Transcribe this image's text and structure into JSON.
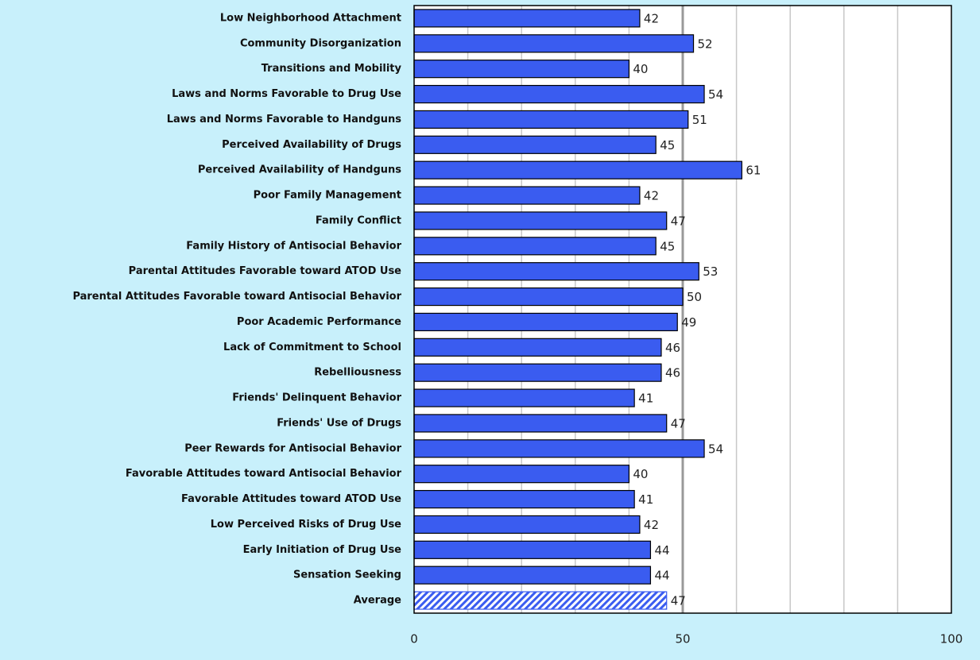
{
  "chart_data": {
    "type": "hbar",
    "categories": [
      "Low Neighborhood Attachment",
      "Community Disorganization",
      "Transitions and Mobility",
      "Laws and Norms Favorable to Drug Use",
      "Laws and Norms Favorable to Handguns",
      "Perceived Availability of Drugs",
      "Perceived Availability of Handguns",
      "Poor Family Management",
      "Family Conflict",
      "Family History of Antisocial Behavior",
      "Parental Attitudes Favorable toward ATOD Use",
      "Parental Attitudes Favorable toward Antisocial Behavior",
      "Poor Academic Performance",
      "Lack of Commitment to School",
      "Rebelliousness",
      "Friends' Delinquent Behavior",
      "Friends' Use of Drugs",
      "Peer Rewards for Antisocial Behavior",
      "Favorable Attitudes toward Antisocial Behavior",
      "Favorable Attitudes toward ATOD Use",
      "Low Perceived Risks of Drug Use",
      "Early Initiation of Drug Use",
      "Sensation Seeking",
      "Average"
    ],
    "values": [
      42,
      52,
      40,
      54,
      51,
      45,
      61,
      42,
      47,
      45,
      53,
      50,
      49,
      46,
      46,
      41,
      47,
      54,
      40,
      41,
      42,
      44,
      44,
      47
    ],
    "color": "#3a5cf0",
    "hatched_categories": [
      "Average"
    ],
    "xlim": [
      0,
      100
    ],
    "xticks": [
      0,
      50,
      100
    ],
    "grid_lines": [
      10,
      20,
      30,
      40,
      50,
      60,
      70,
      80,
      90
    ],
    "emphasized_grid_line": 50
  }
}
